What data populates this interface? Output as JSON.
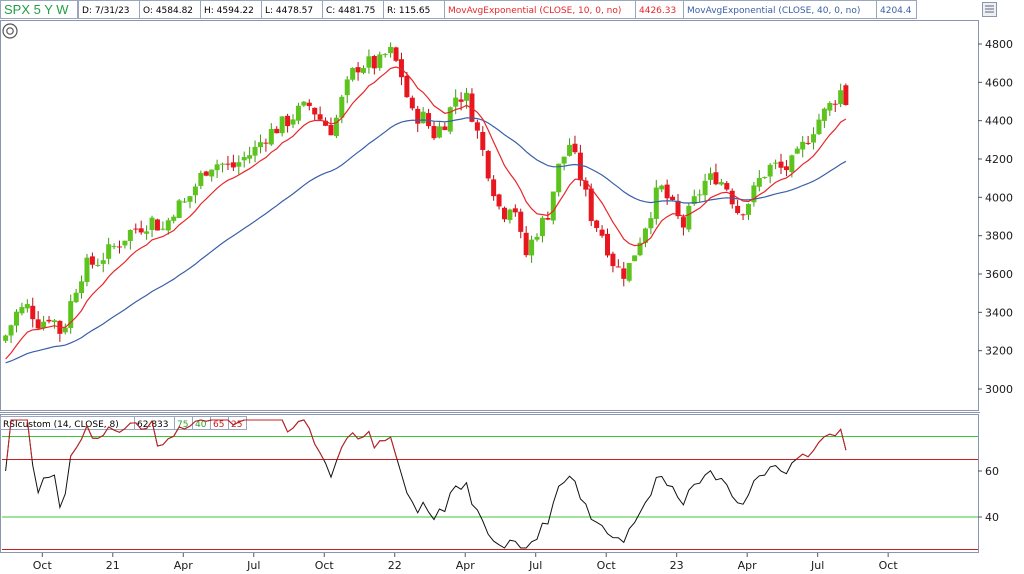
{
  "header": {
    "symbol": "SPX 5 Y W",
    "date": "D: 7/31/23",
    "open": "O: 4584.82",
    "high": "H: 4594.22",
    "low": "L: 4478.57",
    "close": "C: 4481.75",
    "range": "R: 115.65",
    "ema10_label": "MovAvgExponential (CLOSE, 10, 0, no)",
    "ema10_value": "4426.33",
    "ema40_label": "MovAvgExponential (CLOSE, 40, 0, no)",
    "ema40_value": "4204.4"
  },
  "rsi_header": {
    "label": "RSIcustom (14, CLOSE, 8)",
    "value": "62.833",
    "lvl1": "75",
    "lvl2": "40",
    "lvl3": "65",
    "lvl4": "25"
  },
  "colors": {
    "up": "#5cc41c",
    "down": "#e8171f",
    "ema10": "#e8262a",
    "ema40": "#3a5fa8",
    "rsi_line": "#111111",
    "level_green": "#3ec43a",
    "level_red": "#c82020",
    "grid": "#6a7a9a"
  },
  "chart_data": [
    {
      "type": "candlestick",
      "y_ticks": [
        "4800",
        "4600",
        "4400",
        "4200",
        "4000",
        "3800",
        "3600",
        "3400",
        "3200",
        "3000"
      ],
      "ylim": [
        2930,
        4880
      ],
      "x_ticks": [
        "Oct",
        "21",
        "Apr",
        "Jul",
        "Oct",
        "22",
        "Apr",
        "Jul",
        "Oct",
        "23",
        "Apr",
        "Jul",
        "Oct"
      ],
      "series": [
        {
          "name": "MovAvgExponential (CLOSE, 10, 0, no)"
        },
        {
          "name": "MovAvgExponential (CLOSE, 40, 0, no)"
        }
      ]
    },
    {
      "type": "line",
      "y_ticks": [
        "60",
        "40"
      ],
      "ylim": [
        25,
        80
      ],
      "levels": [
        75,
        65,
        40,
        25
      ],
      "series": [
        {
          "name": "RSIcustom (14, CLOSE, 8)"
        }
      ]
    }
  ]
}
